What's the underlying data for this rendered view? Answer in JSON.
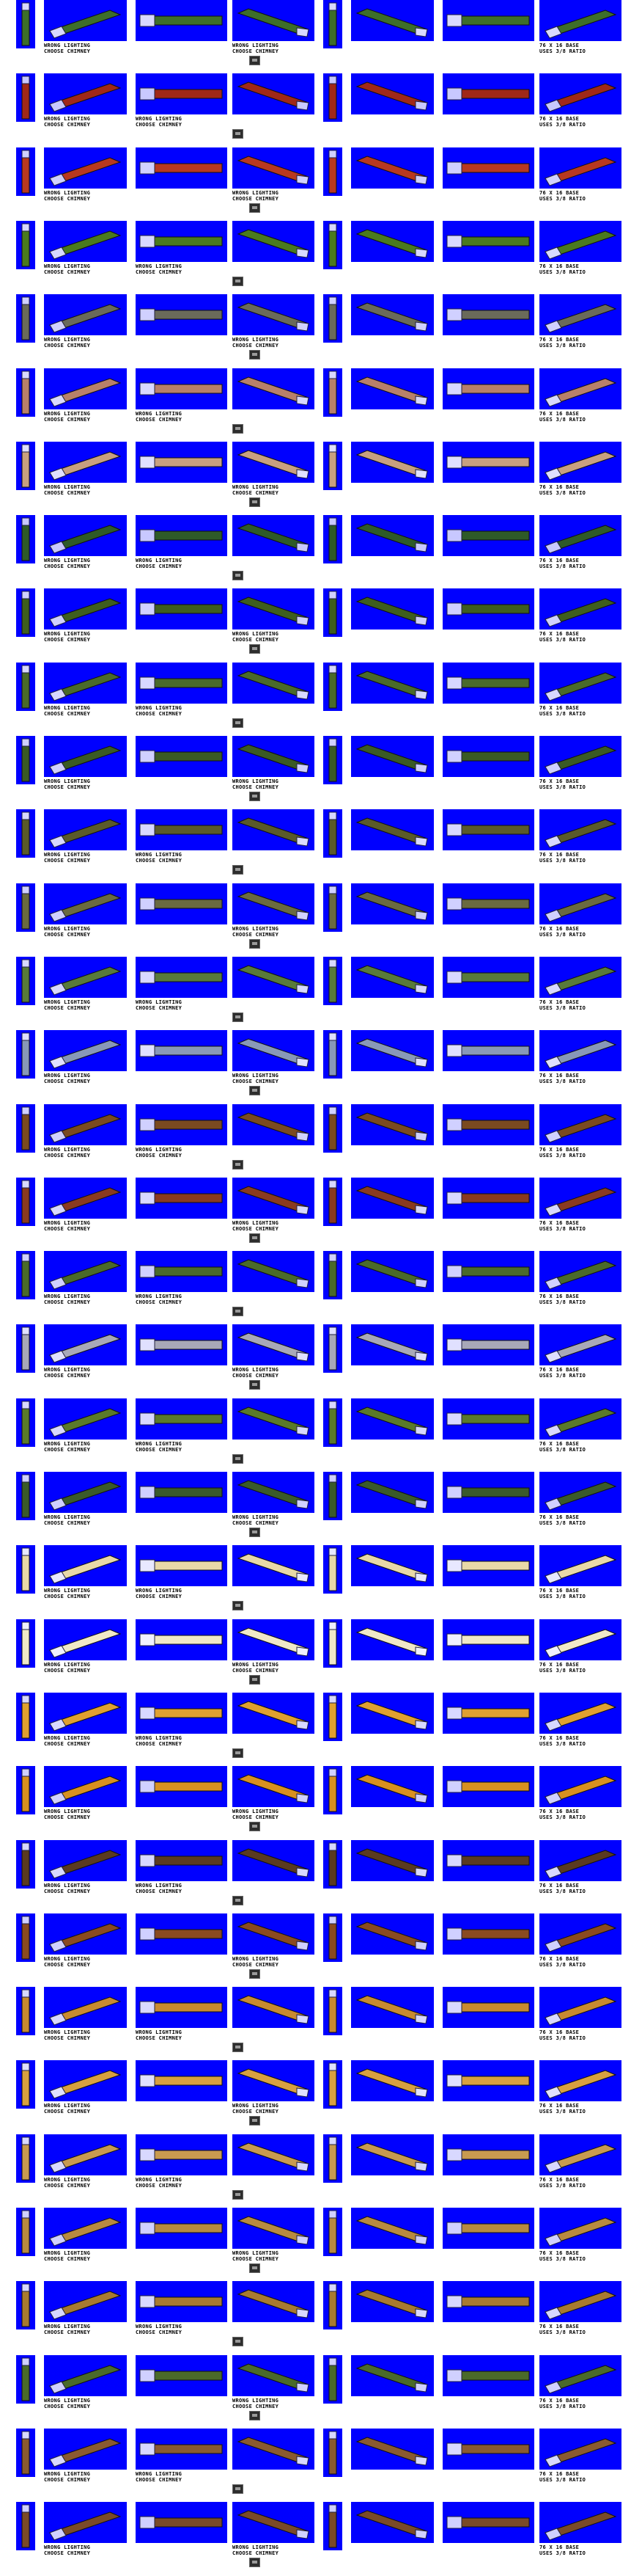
{
  "captions": {
    "wrong_lighting": "WRONG LIGHTING",
    "choose_chimney": "CHOOSE CHIMNEY",
    "base_line1": "76 X 16 BASE",
    "base_line2": "USES 3/8 RATIO"
  },
  "colors": {
    "background": "#ffffff",
    "sprite_bg": "#0000ff"
  },
  "rows": [
    {
      "color": "#3d6e2a",
      "cab": "#d8d8ff"
    },
    {
      "color": "#a02818",
      "cab": "#c8c8ff"
    },
    {
      "color": "#b83820",
      "cab": "#d0d0ff"
    },
    {
      "color": "#4a7a1e",
      "cab": "#d8d8ff"
    },
    {
      "color": "#6a6a5a",
      "cab": "#d0d0ff"
    },
    {
      "color": "#b8806a",
      "cab": "#d8d8ff"
    },
    {
      "color": "#c8a080",
      "cab": "#e0e0ff"
    },
    {
      "color": "#2e5a28",
      "cab": "#c8c8ff"
    },
    {
      "color": "#3e5e1e",
      "cab": "#d0d0ff"
    },
    {
      "color": "#4a6a2a",
      "cab": "#d8d8ff"
    },
    {
      "color": "#3a5a24",
      "cab": "#d0d0ff"
    },
    {
      "color": "#5a5a2a",
      "cab": "#d8d8ff"
    },
    {
      "color": "#6a6a40",
      "cab": "#d0d0ff"
    },
    {
      "color": "#587a3a",
      "cab": "#d8d8ff"
    },
    {
      "color": "#8898b8",
      "cab": "#e0e0ff"
    },
    {
      "color": "#7a4a20",
      "cab": "#d0d0ff"
    },
    {
      "color": "#8a3a20",
      "cab": "#d8d8ff"
    },
    {
      "color": "#4a6a2a",
      "cab": "#d0d0ff"
    },
    {
      "color": "#a8a8b8",
      "cab": "#e0e0ff"
    },
    {
      "color": "#5a7a2a",
      "cab": "#d8d8ff"
    },
    {
      "color": "#3a5a2a",
      "cab": "#d0d0ff"
    },
    {
      "color": "#e8d8a8",
      "cab": "#e8e8ff"
    },
    {
      "color": "#f0e8c8",
      "cab": "#f0f0ff"
    },
    {
      "color": "#e0a030",
      "cab": "#d8d8ff"
    },
    {
      "color": "#d89020",
      "cab": "#d0d0ff"
    },
    {
      "color": "#5a3a20",
      "cab": "#d8d8ff"
    },
    {
      "color": "#8a4a20",
      "cab": "#d0d0ff"
    },
    {
      "color": "#c88a30",
      "cab": "#d8d8ff"
    },
    {
      "color": "#d8a040",
      "cab": "#e0e0ff"
    },
    {
      "color": "#c89a50",
      "cab": "#d8d8ff"
    },
    {
      "color": "#b88a40",
      "cab": "#d0d0ff"
    },
    {
      "color": "#a87a30",
      "cab": "#d8d8ff"
    },
    {
      "color": "#4a6a2a",
      "cab": "#d0d0ff"
    },
    {
      "color": "#8a5a30",
      "cab": "#d8d8ff"
    },
    {
      "color": "#7a4a28",
      "cab": "#d0d0ff"
    }
  ]
}
